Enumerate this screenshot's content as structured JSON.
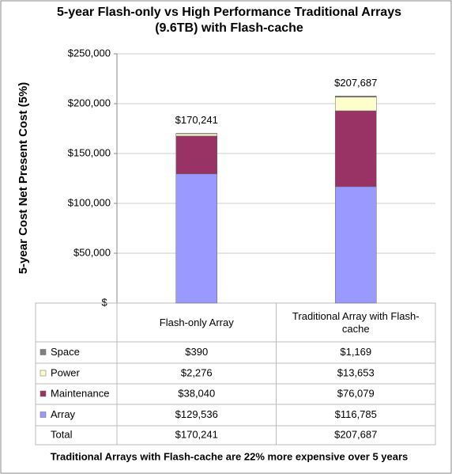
{
  "chart_data": {
    "type": "stacked_bar",
    "title": "5-year Flash-only vs High Performance Traditional Arrays (9.6TB) with Flash-cache",
    "y_label": "5-year Cost Net Present Cost (5%)",
    "footer": "Traditional Arrays with Flash-cache are 22% more expensive over 5 years",
    "categories": [
      "Flash-only Array",
      "Traditional Array with Flash-cache"
    ],
    "series": [
      {
        "name": "Space",
        "color": "#808080",
        "values": [
          390,
          1169
        ],
        "value_labels": [
          "$390",
          "$1,169"
        ]
      },
      {
        "name": "Power",
        "color": "#ffffcc",
        "values": [
          2276,
          13653
        ],
        "value_labels": [
          "$2,276",
          "$13,653"
        ]
      },
      {
        "name": "Maintenance",
        "color": "#993366",
        "values": [
          38040,
          76079
        ],
        "value_labels": [
          "$38,040",
          "$76,079"
        ]
      },
      {
        "name": "Array",
        "color": "#9999ff",
        "values": [
          129536,
          116785
        ],
        "value_labels": [
          "$129,536",
          "$116,785"
        ]
      }
    ],
    "total": {
      "name": "Total",
      "values": [
        170241,
        207687
      ],
      "value_labels": [
        "$170,241",
        "$207,687"
      ]
    },
    "ylim": [
      0,
      250000
    ],
    "yticks": [
      {
        "value": 0,
        "label": "$-"
      },
      {
        "value": 50000,
        "label": "$50,000"
      },
      {
        "value": 100000,
        "label": "$100,000"
      },
      {
        "value": 150000,
        "label": "$150,000"
      },
      {
        "value": 200000,
        "label": "$200,000"
      },
      {
        "value": 250000,
        "label": "$250,000"
      }
    ],
    "grid": true
  }
}
